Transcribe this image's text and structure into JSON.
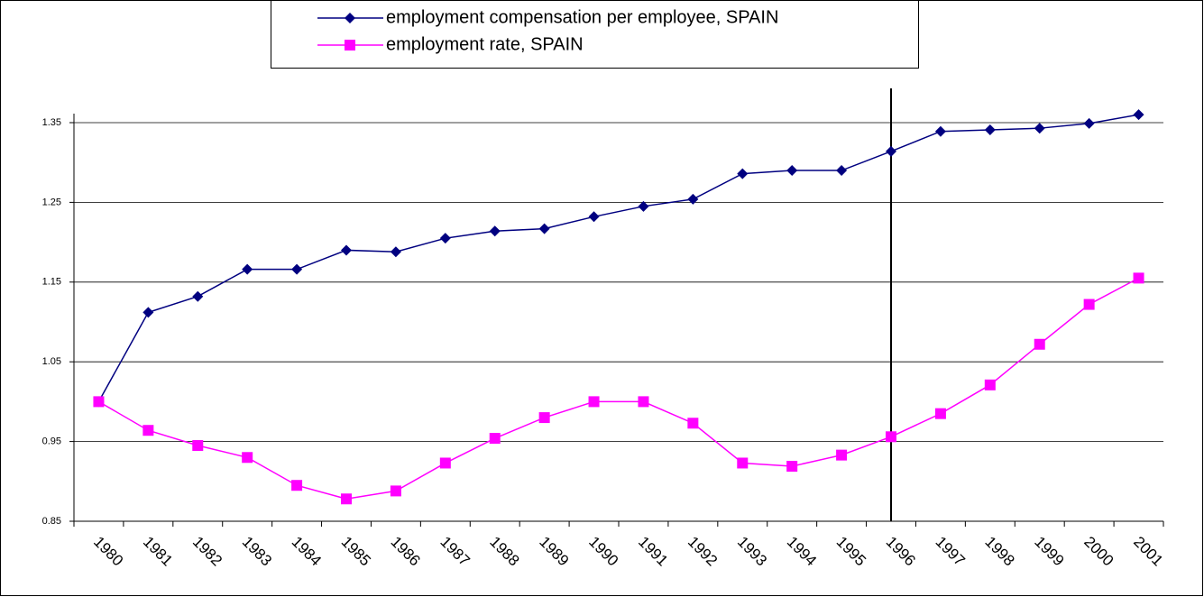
{
  "chart_data": {
    "type": "line",
    "categories": [
      "1980",
      "1981",
      "1982",
      "1983",
      "1984",
      "1985",
      "1986",
      "1987",
      "1988",
      "1989",
      "1990",
      "1991",
      "1992",
      "1993",
      "1994",
      "1995",
      "1996",
      "1997",
      "1998",
      "1999",
      "2000",
      "2001"
    ],
    "series": [
      {
        "name": "employment compensation per employee, SPAIN",
        "color": "#000080",
        "marker": "diamond",
        "values": [
          1.0,
          1.112,
          1.132,
          1.166,
          1.166,
          1.19,
          1.188,
          1.205,
          1.214,
          1.217,
          1.232,
          1.245,
          1.254,
          1.286,
          1.29,
          1.29,
          1.314,
          1.339,
          1.341,
          1.343,
          1.349,
          1.36
        ]
      },
      {
        "name": "employment rate, SPAIN",
        "color": "#ff00ff",
        "marker": "square",
        "values": [
          1.0,
          0.964,
          0.945,
          0.93,
          0.895,
          0.878,
          0.888,
          0.923,
          0.954,
          0.98,
          1.0,
          1.0,
          0.973,
          0.923,
          0.919,
          0.933,
          0.956,
          0.985,
          1.021,
          1.072,
          1.122,
          1.155
        ]
      }
    ],
    "ylim": [
      0.85,
      1.35
    ],
    "yticks": [
      0.85,
      0.95,
      1.05,
      1.15,
      1.25,
      1.35
    ],
    "grid": true,
    "legend": "top",
    "reference_line": {
      "x": "1996"
    }
  }
}
